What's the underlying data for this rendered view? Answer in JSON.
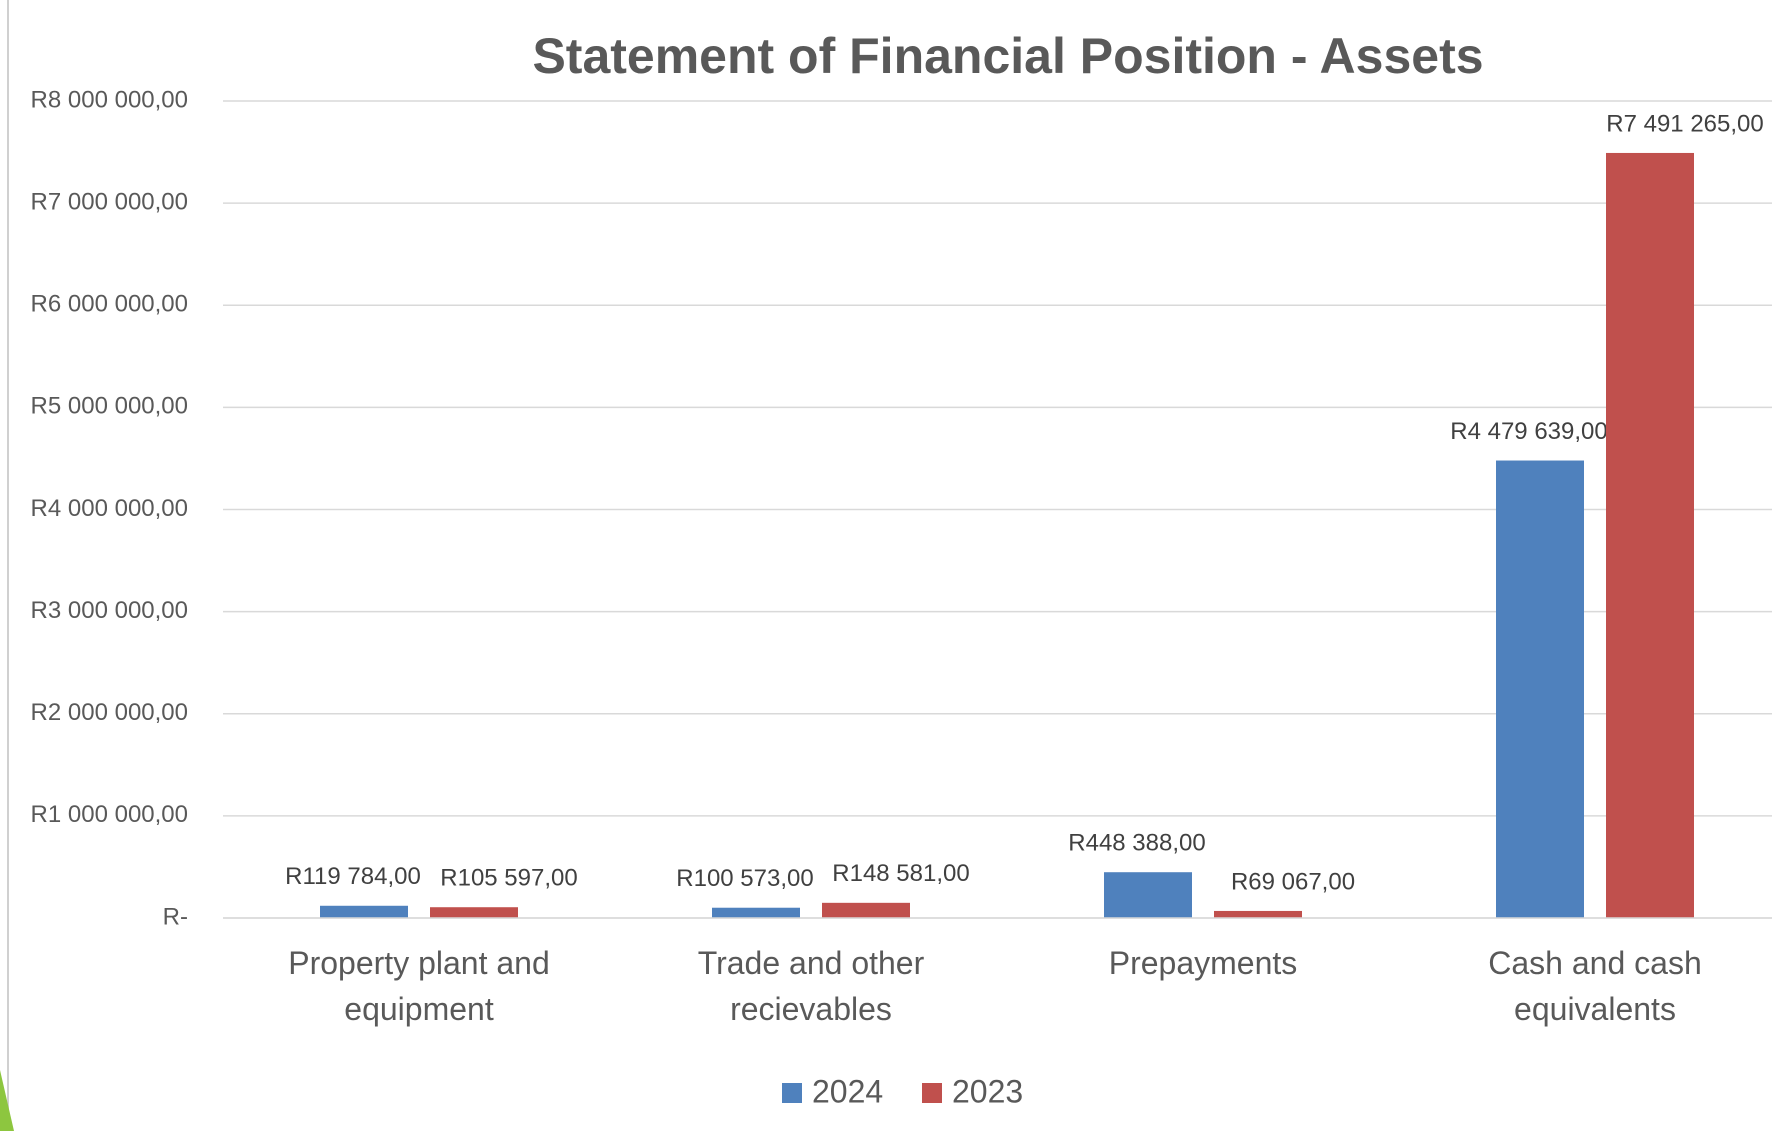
{
  "chart_data": {
    "type": "bar",
    "title": "Statement of Financial Position - Assets",
    "categories": [
      "Property plant and equipment",
      "Trade and other recievables",
      "Prepayments",
      "Cash and cash equivalents"
    ],
    "series": [
      {
        "name": "2024",
        "color": "#4f81bd",
        "values": [
          119784,
          100573,
          448388,
          4479639
        ],
        "value_labels": [
          "R119 784,00",
          "R100 573,00",
          "R448 388,00",
          "R4 479 639,00"
        ]
      },
      {
        "name": "2023",
        "color": "#c0504d",
        "values": [
          105597,
          148581,
          69067,
          7491265
        ],
        "value_labels": [
          "R105 597,00",
          "R148 581,00",
          "R69 067,00",
          "R7 491 265,00"
        ]
      }
    ],
    "ylim": [
      0,
      8000000
    ],
    "yticks": [
      {
        "value": 0,
        "label": "R-"
      },
      {
        "value": 1000000,
        "label": "R1 000 000,00"
      },
      {
        "value": 2000000,
        "label": "R2 000 000,00"
      },
      {
        "value": 3000000,
        "label": "R3 000 000,00"
      },
      {
        "value": 4000000,
        "label": "R4 000 000,00"
      },
      {
        "value": 5000000,
        "label": "R5 000 000,00"
      },
      {
        "value": 6000000,
        "label": "R6 000 000,00"
      },
      {
        "value": 7000000,
        "label": "R7 000 000,00"
      },
      {
        "value": 8000000,
        "label": "R8 000 000,00"
      }
    ],
    "grid": true
  }
}
